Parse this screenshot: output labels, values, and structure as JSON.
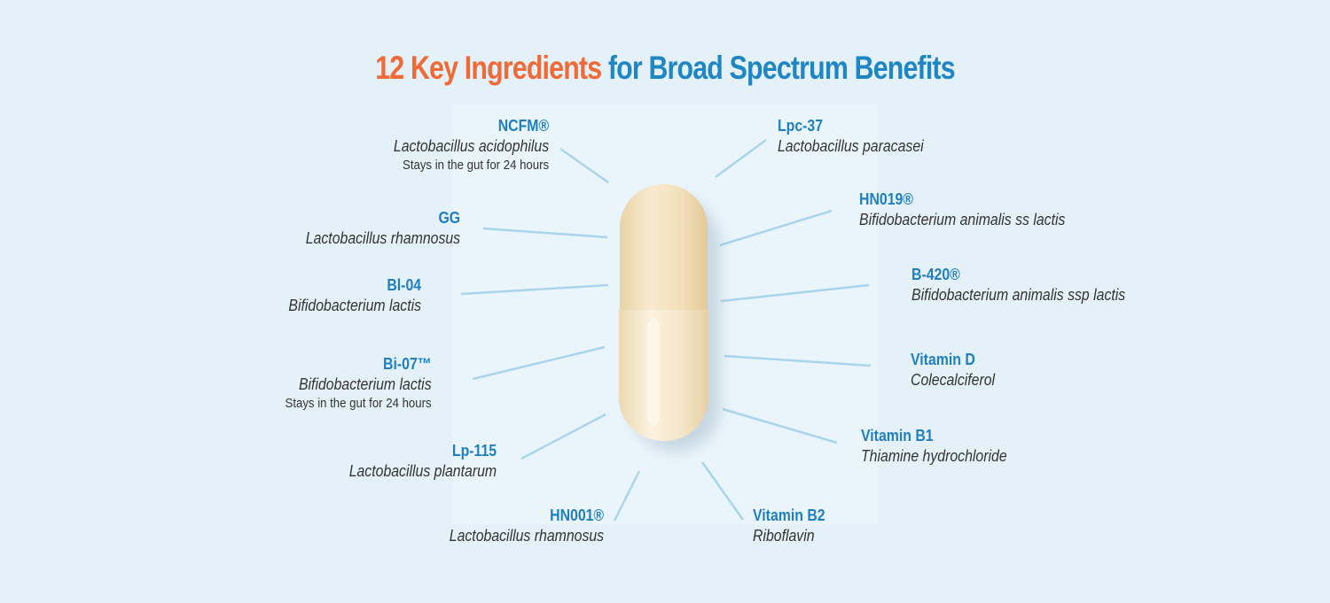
{
  "title": {
    "highlight": "12 Key Ingredients",
    "rest": "for Broad Spectrum Benefits"
  },
  "ingredients": [
    {
      "name": "NCFM®",
      "species": "Lactobacillus acidophilus",
      "note": "Stays in the gut for 24 hours"
    },
    {
      "name": "GG",
      "species": "Lactobacillus rhamnosus"
    },
    {
      "name": "Bl-04",
      "species": "Bifidobacterium lactis"
    },
    {
      "name": "Bi-07™",
      "species": "Bifidobacterium lactis",
      "note": "Stays in the gut for 24 hours"
    },
    {
      "name": "Lp-115",
      "species": "Lactobacillus plantarum"
    },
    {
      "name": "HN001®",
      "species": "Lactobacillus rhamnosus"
    },
    {
      "name": "Lpc-37",
      "species": "Lactobacillus paracasei"
    },
    {
      "name": "HN019®",
      "species": "Bifidobacterium animalis ss lactis"
    },
    {
      "name": "B-420®",
      "species": "Bifidobacterium animalis ssp lactis"
    },
    {
      "name": "Vitamin D",
      "species": "Colecalciferol"
    },
    {
      "name": "Vitamin B1",
      "species": "Thiamine hydrochloride"
    },
    {
      "name": "Vitamin B2",
      "species": "Riboflavin"
    }
  ]
}
